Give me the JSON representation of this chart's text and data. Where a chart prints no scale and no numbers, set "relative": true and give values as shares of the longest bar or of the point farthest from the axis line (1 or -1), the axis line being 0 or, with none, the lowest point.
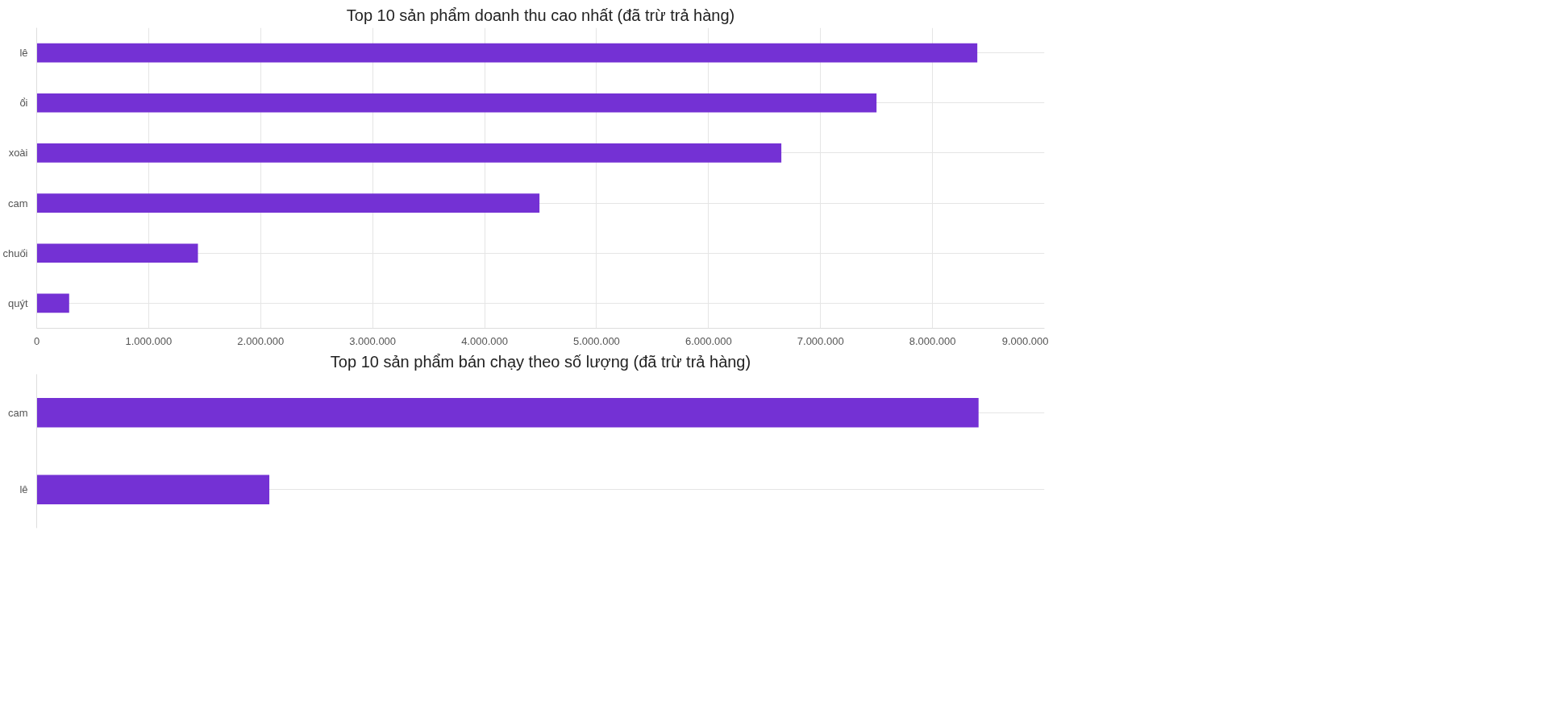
{
  "chart_data": [
    {
      "type": "bar",
      "orientation": "horizontal",
      "title": "Top 10 sản phẩm doanh thu cao nhất (đã trừ trả hàng)",
      "categories": [
        "lê",
        "ổi",
        "xoài",
        "cam",
        "chuối",
        "quýt"
      ],
      "values": [
        8400000,
        7500000,
        6650000,
        4490000,
        1440000,
        290000
      ],
      "color": "#7431d4",
      "xlim": [
        0,
        9000000
      ],
      "xticks": [
        0,
        {
          "value": 1000000,
          "label": "1.000.000"
        },
        {
          "value": 2000000,
          "label": "2.000.000"
        },
        {
          "value": 3000000,
          "label": "3.000.000"
        },
        {
          "value": 4000000,
          "label": "4.000.000"
        },
        {
          "value": 5000000,
          "label": "5.000.000"
        },
        {
          "value": 6000000,
          "label": "6.000.000"
        },
        {
          "value": 7000000,
          "label": "7.000.000"
        },
        {
          "value": 8000000,
          "label": "8.000.000"
        },
        {
          "value": 9000000,
          "label": "9.000.000"
        }
      ],
      "grid": true
    },
    {
      "type": "bar",
      "orientation": "horizontal",
      "relative": true,
      "title": "Top 10 sản phẩm bán chạy theo số lượng (đã trừ trả hàng)",
      "categories": [
        "cam",
        "lê"
      ],
      "values": [
        1,
        0.247
      ],
      "color": "#7431d4",
      "grid": "y"
    }
  ]
}
